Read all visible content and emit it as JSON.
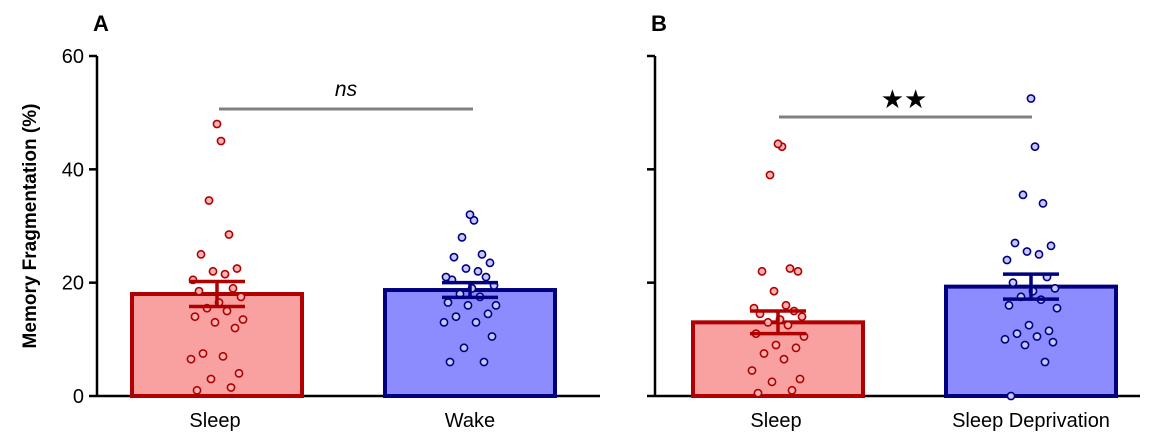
{
  "ylabel": "Memory Fragmentation (%)",
  "ylim": [
    0,
    60
  ],
  "yticks": [
    0,
    20,
    40,
    60
  ],
  "colors": {
    "sleep_fill": "#f9a0a0",
    "sleep_edge": "#b00000",
    "sleep_dot": "#f9b3b3",
    "wake_fill": "#8c8cff",
    "wake_edge": "#000080",
    "wake_dot": "#c9c9ff",
    "sig_line": "#808080"
  },
  "chart_data": [
    {
      "type": "bar",
      "panel": "A",
      "categories": [
        "Sleep",
        "Wake"
      ],
      "values": [
        18.0,
        18.7
      ],
      "errors": [
        2.2,
        1.3
      ],
      "ylabel": "Memory Fragmentation (%)",
      "ylim": [
        0,
        60
      ],
      "significance": "ns",
      "points": [
        [
          1.0,
          1.5,
          3.0,
          4.0,
          6.5,
          7.0,
          7.5,
          12.0,
          13.0,
          13.5,
          14.0,
          15.0,
          15.5,
          16.5,
          17.5,
          18.5,
          19.0,
          20.5,
          21.5,
          22.0,
          22.5,
          25.0,
          28.5,
          34.5,
          45.0,
          48.0
        ],
        [
          6.0,
          6.0,
          8.5,
          10.5,
          13.0,
          13.0,
          14.0,
          14.5,
          16.0,
          16.0,
          16.5,
          17.5,
          18.0,
          19.0,
          19.5,
          20.5,
          21.0,
          21.0,
          22.0,
          22.5,
          23.5,
          24.5,
          25.0,
          28.0,
          31.0,
          32.0
        ]
      ]
    },
    {
      "type": "bar",
      "panel": "B",
      "categories": [
        "Sleep",
        "Sleep Deprivation"
      ],
      "values": [
        13.0,
        19.3
      ],
      "errors": [
        2.0,
        2.2
      ],
      "ylabel": "Memory Fragmentation (%)",
      "ylim": [
        0,
        60
      ],
      "significance": "★★",
      "points": [
        [
          0.5,
          1.0,
          2.5,
          3.0,
          4.5,
          6.5,
          7.5,
          8.5,
          9.0,
          10.5,
          11.0,
          12.5,
          13.0,
          13.5,
          14.0,
          14.5,
          15.0,
          15.5,
          16.0,
          18.5,
          22.0,
          22.0,
          22.5,
          39.0,
          44.0,
          44.5
        ],
        [
          0.0,
          6.0,
          9.0,
          9.5,
          10.0,
          10.5,
          11.0,
          11.5,
          12.5,
          15.5,
          16.0,
          17.0,
          17.5,
          18.5,
          19.0,
          20.0,
          21.0,
          24.0,
          25.0,
          25.5,
          26.5,
          27.0,
          34.0,
          35.5,
          44.0,
          52.5
        ]
      ]
    }
  ]
}
